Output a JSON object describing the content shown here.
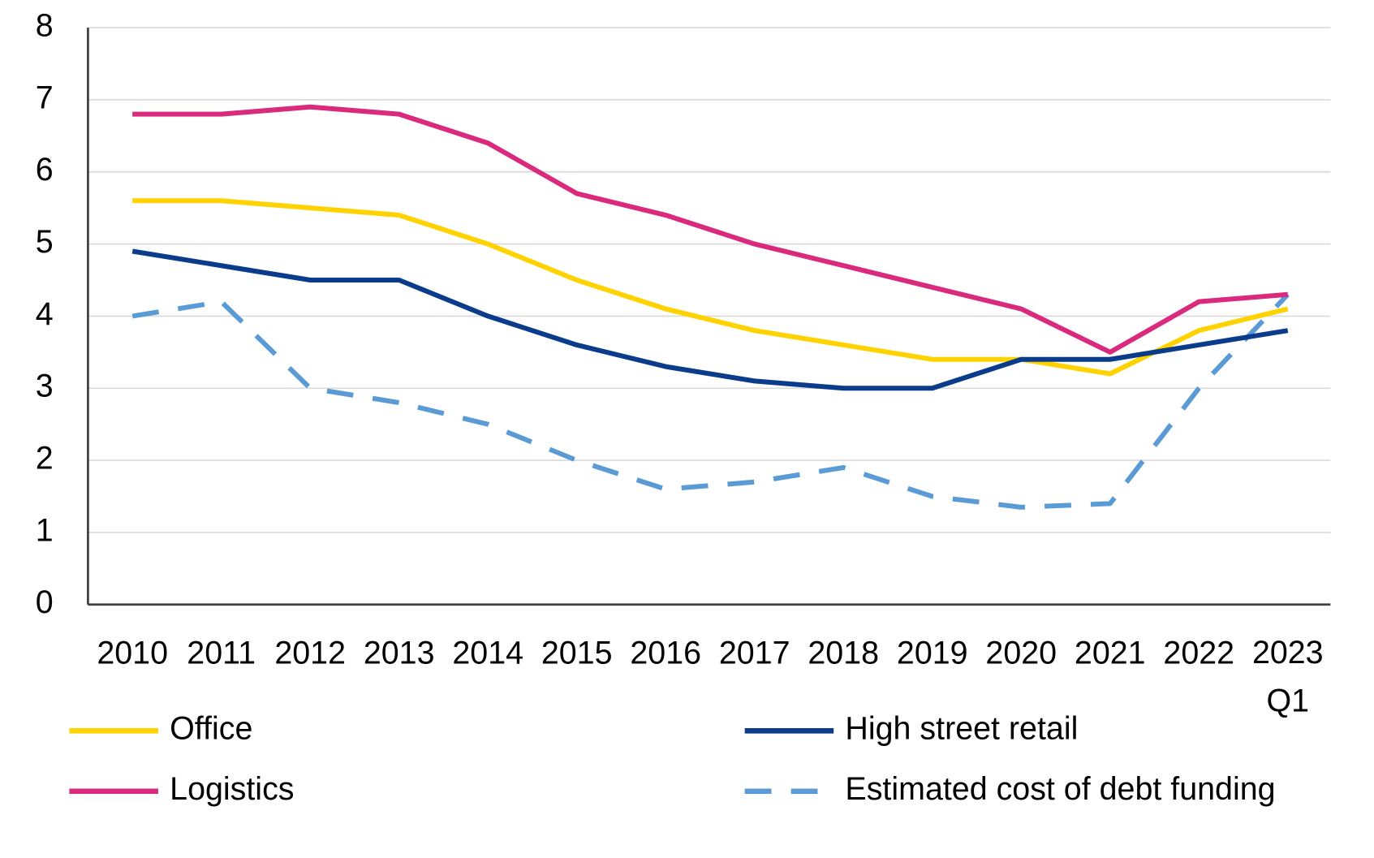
{
  "chart_data": {
    "type": "line",
    "categories": [
      "2010",
      "2011",
      "2012",
      "2013",
      "2014",
      "2015",
      "2016",
      "2017",
      "2018",
      "2019",
      "2020",
      "2021",
      "2022",
      "2023\nQ1"
    ],
    "series": [
      {
        "name": "Office",
        "color": "#ffd200",
        "dashed": false,
        "values": [
          5.6,
          5.6,
          5.5,
          5.4,
          5.0,
          4.5,
          4.1,
          3.8,
          3.6,
          3.4,
          3.4,
          3.2,
          3.8,
          4.1
        ]
      },
      {
        "name": "High street retail",
        "color": "#0b3c8c",
        "dashed": false,
        "values": [
          4.9,
          4.7,
          4.5,
          4.5,
          4.0,
          3.6,
          3.3,
          3.1,
          3.0,
          3.0,
          3.4,
          3.4,
          3.6,
          3.8
        ]
      },
      {
        "name": "Logistics",
        "color": "#da2a7e",
        "dashed": false,
        "values": [
          6.8,
          6.8,
          6.9,
          6.8,
          6.4,
          5.7,
          5.4,
          5.0,
          4.7,
          4.4,
          4.1,
          3.5,
          4.2,
          4.3
        ]
      },
      {
        "name": "Estimated cost of debt funding",
        "color": "#5b9bd5",
        "dashed": true,
        "values": [
          4.0,
          4.2,
          3.0,
          2.8,
          2.5,
          2.0,
          1.6,
          1.7,
          1.9,
          1.5,
          1.35,
          1.4,
          3.0,
          4.3
        ]
      }
    ],
    "ylim": [
      0,
      8
    ],
    "yticks": [
      0,
      1,
      2,
      3,
      4,
      5,
      6,
      7,
      8
    ],
    "grid": true
  }
}
